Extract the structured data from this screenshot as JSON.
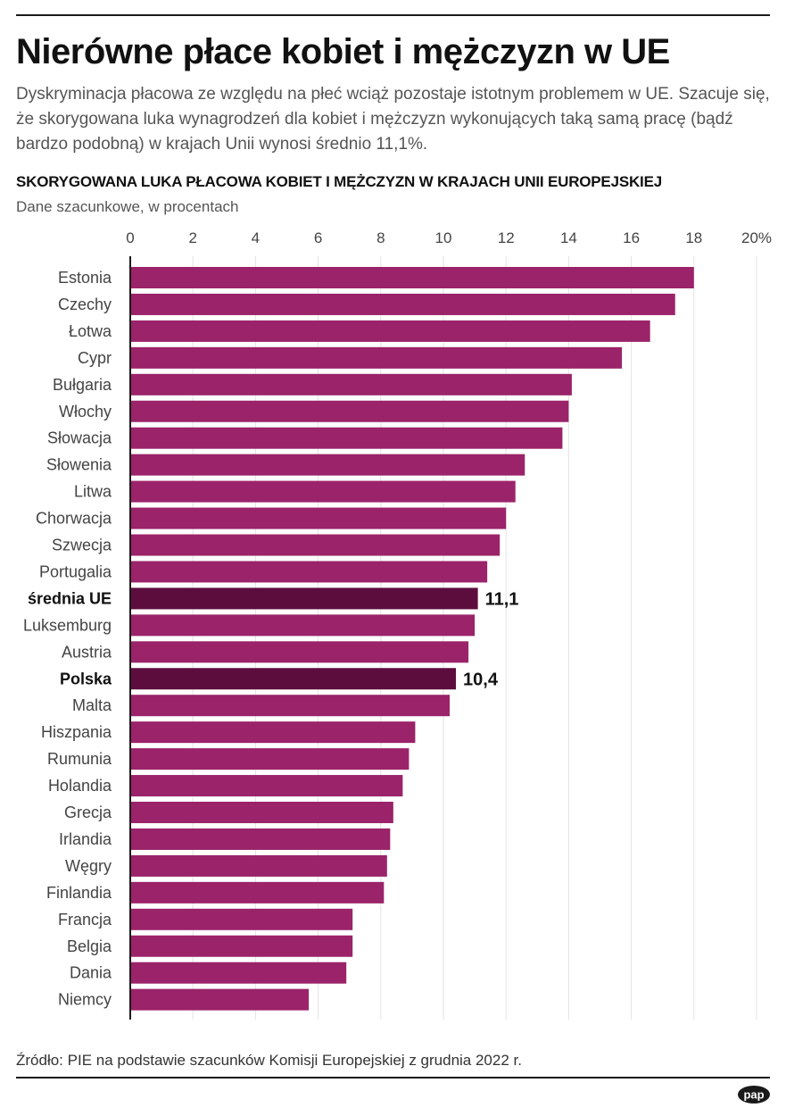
{
  "header": {
    "title": "Nierówne płace kobiet i mężczyzn w UE",
    "lead": "Dyskryminacja płacowa ze względu na płeć wciąż pozostaje istotnym problemem w UE. Szacuje się, że skorygowana luka wynagrodzeń dla kobiet i mężczyzn wykonujących taką samą pracę (bądź bardzo podobną) w krajach Unii wynosi średnio 11,1%."
  },
  "footer": {
    "source": "Źródło: PIE na podstawie szacunków Komisji Europejskiej z grudnia 2022 r.",
    "logo_text": "pap"
  },
  "chart_data": {
    "type": "bar",
    "orientation": "horizontal",
    "title": "SKORYGOWANA LUKA PŁACOWA KOBIET I MĘŻCZYZN W KRAJACH UNII EUROPEJSKIEJ",
    "subtitle": "Dane szacunkowe, w procentach",
    "xlim": [
      0,
      20
    ],
    "ticks": [
      "0",
      "2",
      "4",
      "6",
      "8",
      "10",
      "12",
      "14",
      "16",
      "18",
      "20%"
    ],
    "grid": true,
    "colors": {
      "bar": "#9b2369",
      "highlight": "#5c0d3d",
      "grid": "#e3e3e3",
      "axis": "#1a1a1a"
    },
    "categories": [
      "Estonia",
      "Czechy",
      "Łotwa",
      "Cypr",
      "Bułgaria",
      "Włochy",
      "Słowacja",
      "Słowenia",
      "Litwa",
      "Chorwacja",
      "Szwecja",
      "Portugalia",
      "średnia UE",
      "Luksemburg",
      "Austria",
      "Polska",
      "Malta",
      "Hiszpania",
      "Rumunia",
      "Holandia",
      "Grecja",
      "Irlandia",
      "Węgry",
      "Finlandia",
      "Francja",
      "Belgia",
      "Dania",
      "Niemcy"
    ],
    "values": [
      18.0,
      17.4,
      16.6,
      15.7,
      14.1,
      14.0,
      13.8,
      12.6,
      12.3,
      12.0,
      11.8,
      11.4,
      11.1,
      11.0,
      10.8,
      10.4,
      10.2,
      9.1,
      8.9,
      8.7,
      8.4,
      8.3,
      8.2,
      8.1,
      7.1,
      7.1,
      6.9,
      5.7
    ],
    "highlighted": [
      "średnia UE",
      "Polska"
    ],
    "data_labels": {
      "średnia UE": "11,1",
      "Polska": "10,4"
    }
  }
}
